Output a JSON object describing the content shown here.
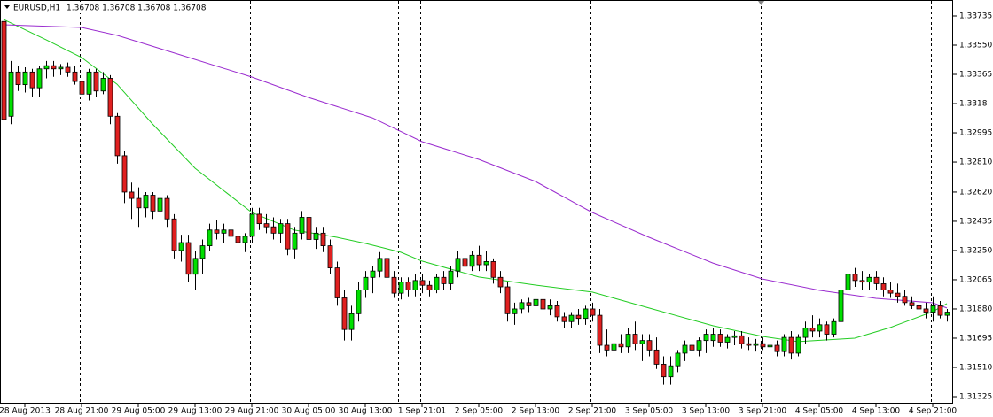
{
  "chart_data": {
    "type": "candlestick",
    "title": "EURUSD,H1",
    "subtitle": "1.36708 1.36708 1.36708 1.36708",
    "up_color": "#00e000",
    "down_color": "#e02020",
    "categories": [
      null,
      null,
      null,
      "28 Aug 2013",
      null,
      null,
      null,
      null,
      null,
      null,
      null,
      "28 Aug 21:00",
      null,
      null,
      null,
      null,
      null,
      null,
      null,
      "29 Aug 05:00",
      null,
      null,
      null,
      null,
      null,
      null,
      null,
      "29 Aug 13:00",
      null,
      null,
      null,
      null,
      null,
      null,
      null,
      "29 Aug 21:00",
      null,
      null,
      null,
      null,
      null,
      null,
      null,
      "30 Aug 05:00",
      null,
      null,
      null,
      null,
      null,
      null,
      null,
      "30 Aug 13:00",
      null,
      null,
      null,
      null,
      null,
      null,
      null,
      "1 Sep 21:01",
      null,
      null,
      null,
      null,
      null,
      null,
      null,
      "2 Sep 05:00",
      null,
      null,
      null,
      null,
      null,
      null,
      null,
      "2 Sep 13:00",
      null,
      null,
      null,
      null,
      null,
      null,
      null,
      "2 Sep 21:00",
      null,
      null,
      null,
      null,
      null,
      null,
      null,
      "3 Sep 05:00",
      null,
      null,
      null,
      null,
      null,
      null,
      null,
      "3 Sep 13:00",
      null,
      null,
      null,
      null,
      null,
      null,
      null,
      "3 Sep 21:00",
      null,
      null,
      null,
      null,
      null,
      null,
      null,
      "4 Sep 05:00",
      null,
      null,
      null,
      null,
      null,
      null,
      null,
      "4 Sep 13:00",
      null,
      null,
      null,
      null,
      null,
      null,
      null,
      "4 Sep 21:00",
      null,
      null
    ],
    "ohlc": [
      [
        1.337,
        1.3373,
        1.3303,
        1.3308
      ],
      [
        1.331,
        1.3345,
        1.3305,
        1.3338
      ],
      [
        1.3338,
        1.3342,
        1.3326,
        1.333
      ],
      [
        1.333,
        1.3341,
        1.3325,
        1.3338
      ],
      [
        1.3338,
        1.334,
        1.3322,
        1.3328
      ],
      [
        1.3328,
        1.3342,
        1.3322,
        1.334
      ],
      [
        1.334,
        1.3345,
        1.3334,
        1.3342
      ],
      [
        1.3342,
        1.3345,
        1.3335,
        1.334
      ],
      [
        1.334,
        1.3343,
        1.3336,
        1.3341
      ],
      [
        1.3341,
        1.3344,
        1.3335,
        1.3338
      ],
      [
        1.3338,
        1.3342,
        1.333,
        1.3332
      ],
      [
        1.3332,
        1.3336,
        1.332,
        1.3324
      ],
      [
        1.3324,
        1.334,
        1.332,
        1.3338
      ],
      [
        1.3338,
        1.334,
        1.3322,
        1.3326
      ],
      [
        1.3326,
        1.3338,
        1.3324,
        1.3334
      ],
      [
        1.3334,
        1.3336,
        1.3305,
        1.331
      ],
      [
        1.331,
        1.3312,
        1.328,
        1.3285
      ],
      [
        1.3285,
        1.3288,
        1.3255,
        1.3262
      ],
      [
        1.3262,
        1.3268,
        1.3245,
        1.3258
      ],
      [
        1.3258,
        1.3265,
        1.324,
        1.3252
      ],
      [
        1.3252,
        1.3262,
        1.3246,
        1.326
      ],
      [
        1.326,
        1.3262,
        1.3245,
        1.325
      ],
      [
        1.325,
        1.3263,
        1.3248,
        1.3258
      ],
      [
        1.3258,
        1.326,
        1.324,
        1.3245
      ],
      [
        1.3245,
        1.3248,
        1.322,
        1.3225
      ],
      [
        1.3225,
        1.3235,
        1.3218,
        1.323
      ],
      [
        1.323,
        1.3235,
        1.3205,
        1.321
      ],
      [
        1.321,
        1.3225,
        1.32,
        1.322
      ],
      [
        1.322,
        1.3232,
        1.321,
        1.3228
      ],
      [
        1.3228,
        1.3242,
        1.3225,
        1.3238
      ],
      [
        1.3238,
        1.3244,
        1.3232,
        1.3236
      ],
      [
        1.3236,
        1.3242,
        1.323,
        1.3238
      ],
      [
        1.3238,
        1.324,
        1.323,
        1.3234
      ],
      [
        1.3234,
        1.3238,
        1.3226,
        1.323
      ],
      [
        1.323,
        1.3236,
        1.3224,
        1.3234
      ],
      [
        1.3234,
        1.3252,
        1.323,
        1.3248
      ],
      [
        1.3248,
        1.3252,
        1.3238,
        1.3242
      ],
      [
        1.3242,
        1.3248,
        1.3236,
        1.324
      ],
      [
        1.324,
        1.3246,
        1.3232,
        1.3236
      ],
      [
        1.3236,
        1.3245,
        1.323,
        1.3242
      ],
      [
        1.3242,
        1.3245,
        1.3222,
        1.3226
      ],
      [
        1.3226,
        1.324,
        1.322,
        1.3236
      ],
      [
        1.3236,
        1.325,
        1.3232,
        1.3246
      ],
      [
        1.3246,
        1.325,
        1.3228,
        1.3232
      ],
      [
        1.3232,
        1.324,
        1.3226,
        1.3236
      ],
      [
        1.3236,
        1.324,
        1.3224,
        1.3228
      ],
      [
        1.3228,
        1.3232,
        1.321,
        1.3214
      ],
      [
        1.3214,
        1.3218,
        1.319,
        1.3195
      ],
      [
        1.3195,
        1.32,
        1.3168,
        1.3175
      ],
      [
        1.3175,
        1.319,
        1.3168,
        1.3185
      ],
      [
        1.3185,
        1.3205,
        1.318,
        1.32
      ],
      [
        1.32,
        1.3212,
        1.3195,
        1.3208
      ],
      [
        1.3208,
        1.3215,
        1.3198,
        1.3212
      ],
      [
        1.3212,
        1.3224,
        1.3208,
        1.322
      ],
      [
        1.322,
        1.3222,
        1.3205,
        1.3208
      ],
      [
        1.3208,
        1.3212,
        1.3195,
        1.3198
      ],
      [
        1.3198,
        1.3208,
        1.3194,
        1.3205
      ],
      [
        1.3205,
        1.3208,
        1.3196,
        1.32
      ],
      [
        1.32,
        1.321,
        1.3196,
        1.3206
      ],
      [
        1.3206,
        1.321,
        1.3198,
        1.3203
      ],
      [
        1.3203,
        1.3206,
        1.3196,
        1.32
      ],
      [
        1.32,
        1.321,
        1.3198,
        1.3208
      ],
      [
        1.3208,
        1.3212,
        1.32,
        1.3204
      ],
      [
        1.3204,
        1.3215,
        1.32,
        1.3212
      ],
      [
        1.3212,
        1.3225,
        1.3208,
        1.322
      ],
      [
        1.322,
        1.3228,
        1.321,
        1.3215
      ],
      [
        1.3215,
        1.3225,
        1.3212,
        1.3222
      ],
      [
        1.3222,
        1.3228,
        1.3212,
        1.3216
      ],
      [
        1.3216,
        1.3225,
        1.3212,
        1.3218
      ],
      [
        1.3218,
        1.322,
        1.3204,
        1.3208
      ],
      [
        1.3208,
        1.3212,
        1.3198,
        1.3202
      ],
      [
        1.3202,
        1.3205,
        1.318,
        1.3185
      ],
      [
        1.3185,
        1.3192,
        1.3178,
        1.3188
      ],
      [
        1.3188,
        1.3194,
        1.3185,
        1.3192
      ],
      [
        1.3192,
        1.3195,
        1.3186,
        1.319
      ],
      [
        1.319,
        1.3196,
        1.3185,
        1.3194
      ],
      [
        1.3194,
        1.3196,
        1.3186,
        1.3188
      ],
      [
        1.3188,
        1.3194,
        1.3184,
        1.319
      ],
      [
        1.319,
        1.3193,
        1.318,
        1.3183
      ],
      [
        1.3183,
        1.3186,
        1.3176,
        1.318
      ],
      [
        1.318,
        1.3186,
        1.3176,
        1.3184
      ],
      [
        1.3184,
        1.3188,
        1.3178,
        1.3182
      ],
      [
        1.3182,
        1.319,
        1.3178,
        1.3188
      ],
      [
        1.3188,
        1.3192,
        1.318,
        1.3184
      ],
      [
        1.3184,
        1.3188,
        1.316,
        1.3165
      ],
      [
        1.3165,
        1.3175,
        1.3158,
        1.3162
      ],
      [
        1.3162,
        1.317,
        1.3158,
        1.3166
      ],
      [
        1.3166,
        1.3172,
        1.316,
        1.3164
      ],
      [
        1.3164,
        1.3176,
        1.316,
        1.3172
      ],
      [
        1.3172,
        1.318,
        1.3162,
        1.3166
      ],
      [
        1.3166,
        1.3172,
        1.3155,
        1.3168
      ],
      [
        1.3168,
        1.3172,
        1.3158,
        1.3162
      ],
      [
        1.3162,
        1.317,
        1.315,
        1.3153
      ],
      [
        1.3153,
        1.3158,
        1.314,
        1.3145
      ],
      [
        1.3145,
        1.3158,
        1.314,
        1.3152
      ],
      [
        1.3152,
        1.3162,
        1.3148,
        1.316
      ],
      [
        1.316,
        1.3168,
        1.3155,
        1.3165
      ],
      [
        1.3165,
        1.3168,
        1.3158,
        1.3162
      ],
      [
        1.3162,
        1.317,
        1.3158,
        1.3168
      ],
      [
        1.3168,
        1.3175,
        1.316,
        1.3172
      ],
      [
        1.3168,
        1.3176,
        1.3164,
        1.3172
      ],
      [
        1.3172,
        1.3175,
        1.3164,
        1.3167
      ],
      [
        1.3167,
        1.3172,
        1.3163,
        1.317
      ],
      [
        1.317,
        1.3174,
        1.3165,
        1.3171
      ],
      [
        1.3171,
        1.3174,
        1.3163,
        1.3166
      ],
      [
        1.3166,
        1.317,
        1.3162,
        1.3165
      ],
      [
        1.3165,
        1.3169,
        1.3161,
        1.3166
      ],
      [
        1.3166,
        1.317,
        1.3162,
        1.3164
      ],
      [
        1.3164,
        1.3167,
        1.316,
        1.3165
      ],
      [
        1.3165,
        1.3168,
        1.3158,
        1.3161
      ],
      [
        1.3161,
        1.3172,
        1.3158,
        1.317
      ],
      [
        1.317,
        1.3174,
        1.3156,
        1.316
      ],
      [
        1.316,
        1.3172,
        1.3158,
        1.317
      ],
      [
        1.317,
        1.318,
        1.3166,
        1.3176
      ],
      [
        1.3176,
        1.3184,
        1.317,
        1.3174
      ],
      [
        1.3174,
        1.3182,
        1.317,
        1.3178
      ],
      [
        1.3178,
        1.318,
        1.3168,
        1.3172
      ],
      [
        1.3172,
        1.3182,
        1.317,
        1.318
      ],
      [
        1.318,
        1.3205,
        1.3176,
        1.32
      ],
      [
        1.32,
        1.3215,
        1.3195,
        1.321
      ],
      [
        1.321,
        1.3214,
        1.3202,
        1.3206
      ],
      [
        1.3206,
        1.3212,
        1.32,
        1.3205
      ],
      [
        1.3205,
        1.321,
        1.32,
        1.3208
      ],
      [
        1.3208,
        1.3212,
        1.32,
        1.3204
      ],
      [
        1.3204,
        1.3208,
        1.3196,
        1.32
      ],
      [
        1.32,
        1.3205,
        1.3195,
        1.3198
      ],
      [
        1.3198,
        1.3204,
        1.3192,
        1.3196
      ],
      [
        1.3196,
        1.32,
        1.319,
        1.3192
      ],
      [
        1.3192,
        1.3196,
        1.3188,
        1.319
      ],
      [
        1.319,
        1.3194,
        1.3184,
        1.3188
      ],
      [
        1.3188,
        1.3192,
        1.3182,
        1.3186
      ],
      [
        1.3186,
        1.3196,
        1.318,
        1.319
      ],
      [
        1.319,
        1.3193,
        1.3182,
        1.3184
      ],
      [
        1.3184,
        1.3188,
        1.318,
        1.3186
      ]
    ],
    "series": [
      {
        "color": "#22cc22",
        "x": [
          0,
          6,
          11,
          16,
          21,
          27,
          35,
          41,
          47,
          51,
          56,
          59,
          67,
          75,
          83,
          91,
          100,
          107,
          112,
          120,
          125,
          131,
          133
        ],
        "values": [
          1.33713,
          1.33584,
          1.33472,
          1.33303,
          1.33051,
          1.32771,
          1.32491,
          1.32379,
          1.32334,
          1.32295,
          1.32239,
          1.32183,
          1.32082,
          1.32031,
          1.31987,
          1.31886,
          1.31774,
          1.31706,
          1.31673,
          1.31695,
          1.31762,
          1.31863,
          1.31914
        ]
      },
      {
        "color": "#9a2ccf",
        "x": [
          0,
          11,
          16,
          25,
          35,
          43,
          52,
          59,
          67,
          75,
          83,
          91,
          100,
          107,
          115,
          123,
          131,
          133
        ],
        "values": [
          1.33679,
          1.33662,
          1.33612,
          1.33488,
          1.33348,
          1.33219,
          1.3309,
          1.32939,
          1.32827,
          1.32687,
          1.32491,
          1.32334,
          1.32171,
          1.3207,
          1.31998,
          1.31947,
          1.31919,
          1.31886
        ]
      }
    ],
    "ylim": [
      1.31325,
      1.33735
    ],
    "yticks": [
      1.33735,
      {
        "value": 1.3355,
        "label": "1.33550"
      },
      1.33365,
      1.3318,
      1.32995,
      {
        "value": 1.3281,
        "label": "1.32810"
      },
      {
        "value": 1.3262,
        "label": "1.32620"
      },
      1.32435,
      {
        "value": 1.3225,
        "label": "1.32250"
      },
      1.32065,
      {
        "value": 1.3188,
        "label": "1.31880"
      },
      1.31695,
      {
        "value": 1.3151,
        "label": "1.31510"
      },
      1.31325
    ]
  }
}
